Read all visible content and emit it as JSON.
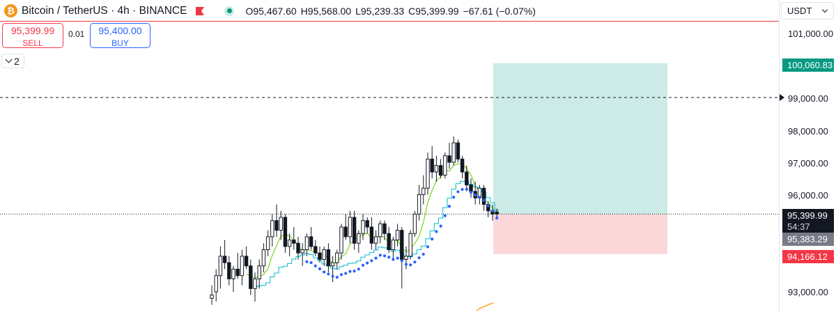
{
  "header": {
    "logo_glyph": "₿",
    "title": "Bitcoin / TetherUS · 4h · BINANCE",
    "ohlc": {
      "open_label": "O",
      "open": "95,467.60",
      "high_label": "H",
      "high": "95,568.00",
      "low_label": "L",
      "low": "95,239.33",
      "close_label": "C",
      "close": "95,399.99",
      "change": "−67.61 (−0.07%)"
    }
  },
  "trade": {
    "sell_price": "95,399.99",
    "sell_label": "SELL",
    "spread": "0.01",
    "buy_price": "95,400.00",
    "buy_label": "BUY"
  },
  "indicators": {
    "collapsed_count": "2"
  },
  "price_axis": {
    "currency": "USDT",
    "ticks": [
      "101,000.00",
      "99,000.00",
      "98,000.00",
      "97,000.00",
      "96,000.00",
      "93,000.00"
    ],
    "take_profit": "100,060.83",
    "last_price": "95,399.99",
    "countdown": "54:37",
    "position_price": "95,383.29",
    "stop_loss": "94,166.12"
  },
  "colors": {
    "up": "#089981",
    "down": "#f23645",
    "candle": "#131722",
    "ma_green": "#7ed321",
    "ma_cyan": "#00bcd4",
    "sar_blue": "#2962ff",
    "orange": "#ff9800",
    "profit_zone": "#cdebe6",
    "loss_zone": "#fbd7da"
  },
  "chart_data": {
    "type": "candlestick",
    "y_range": [
      92600,
      101500
    ],
    "levels": {
      "take_profit": 100060.83,
      "entry": 95400,
      "stop_loss": 94166.12,
      "dashed_line": 99000
    },
    "candles": [
      [
        92800,
        93200,
        92600,
        92900
      ],
      [
        93000,
        93700,
        92700,
        93500
      ],
      [
        93500,
        94400,
        93100,
        94100
      ],
      [
        94100,
        94600,
        93700,
        93900
      ],
      [
        93900,
        94100,
        93200,
        93400
      ],
      [
        93400,
        93800,
        93000,
        93700
      ],
      [
        93700,
        94200,
        93400,
        93500
      ],
      [
        93500,
        94300,
        93200,
        94100
      ],
      [
        94100,
        94400,
        93700,
        93800
      ],
      [
        93800,
        94000,
        92900,
        93100
      ],
      [
        93100,
        93600,
        92700,
        93400
      ],
      [
        93400,
        94000,
        93100,
        93800
      ],
      [
        93800,
        94500,
        93600,
        94300
      ],
      [
        94300,
        94900,
        94100,
        94700
      ],
      [
        94700,
        95400,
        94400,
        95200
      ],
      [
        95200,
        95700,
        94700,
        94900
      ],
      [
        94900,
        95500,
        94600,
        95300
      ],
      [
        95300,
        95400,
        94200,
        94400
      ],
      [
        94400,
        94800,
        94100,
        94600
      ],
      [
        94600,
        95000,
        94300,
        94500
      ],
      [
        94500,
        94700,
        94000,
        94200
      ],
      [
        94200,
        94500,
        93800,
        94300
      ],
      [
        94300,
        94800,
        94100,
        94700
      ],
      [
        94700,
        95000,
        94300,
        94400
      ],
      [
        94400,
        94600,
        94100,
        94200
      ],
      [
        94200,
        94400,
        93900,
        94000
      ],
      [
        94000,
        94400,
        93800,
        94300
      ],
      [
        94300,
        94500,
        93600,
        93800
      ],
      [
        93800,
        94100,
        93300,
        93900
      ],
      [
        93900,
        94300,
        93700,
        94200
      ],
      [
        94200,
        95100,
        94000,
        95000
      ],
      [
        95000,
        95400,
        94600,
        94700
      ],
      [
        94700,
        95500,
        94500,
        95300
      ],
      [
        95300,
        95500,
        94300,
        94500
      ],
      [
        94500,
        94900,
        94200,
        94800
      ],
      [
        94800,
        95400,
        94600,
        95200
      ],
      [
        95200,
        95300,
        94800,
        95000
      ],
      [
        95000,
        95300,
        94300,
        94500
      ],
      [
        94500,
        94900,
        94300,
        94700
      ],
      [
        94700,
        95200,
        94500,
        95100
      ],
      [
        95100,
        95200,
        94600,
        94800
      ],
      [
        94800,
        95000,
        94200,
        94300
      ],
      [
        94300,
        94700,
        94000,
        94600
      ],
      [
        94600,
        95100,
        94400,
        94900
      ],
      [
        94900,
        95000,
        93100,
        94000
      ],
      [
        94000,
        94400,
        93700,
        94100
      ],
      [
        94100,
        94900,
        94000,
        94800
      ],
      [
        94800,
        95500,
        94700,
        95400
      ],
      [
        95400,
        96300,
        95200,
        96000
      ],
      [
        96000,
        96600,
        95700,
        96200
      ],
      [
        96200,
        97300,
        96000,
        97100
      ],
      [
        97100,
        97500,
        96500,
        96700
      ],
      [
        96700,
        97200,
        96400,
        96900
      ],
      [
        96900,
        97100,
        96500,
        96600
      ],
      [
        96600,
        97300,
        96500,
        97200
      ],
      [
        97200,
        97600,
        96800,
        97000
      ],
      [
        97000,
        97800,
        96900,
        97600
      ],
      [
        97600,
        97700,
        97000,
        97100
      ],
      [
        97100,
        97200,
        96500,
        96700
      ],
      [
        96700,
        96900,
        96100,
        96300
      ],
      [
        96300,
        96500,
        95900,
        96100
      ],
      [
        96100,
        96400,
        95700,
        95900
      ],
      [
        95900,
        96300,
        95700,
        96200
      ],
      [
        96200,
        96300,
        95500,
        95700
      ],
      [
        95700,
        95800,
        95300,
        95500
      ],
      [
        95500,
        95700,
        95200,
        95400
      ],
      [
        95467.6,
        95568,
        95239.33,
        95399.99
      ]
    ]
  }
}
